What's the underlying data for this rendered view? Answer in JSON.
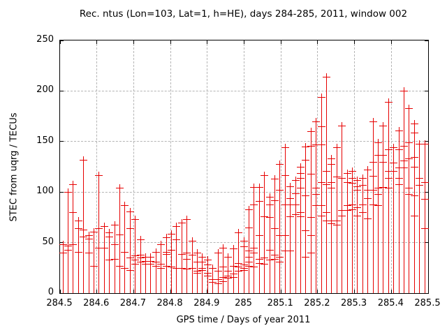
{
  "title": "Rec. ntus (Lon=103, Lat=1, h=HE), days 284-285, 2011, window 002",
  "colors": {
    "series": "#e60000",
    "grid": "#b4b4b4",
    "axis": "#000000",
    "background": "#ffffff"
  },
  "chart_data": {
    "type": "scatter",
    "style": "vertical impulses from zero to max with plus point markers",
    "title": "Rec. ntus (Lon=103, Lat=1, h=HE), days 284-285, 2011, window 002",
    "xlabel": "GPS time / Days of year 2011",
    "ylabel": "STEC from uqrg / TECUs",
    "xlim": [
      284.5,
      285.5
    ],
    "ylim": [
      0,
      250
    ],
    "grid": true,
    "legend": false,
    "x_tick_labels": [
      "284.5",
      "284.6",
      "284.7",
      "284.8",
      "284.9",
      "285",
      "285.1",
      "285.2",
      "285.3",
      "285.4",
      "285.5"
    ],
    "x_ticks": [
      284.5,
      284.6,
      284.7,
      284.8,
      284.9,
      285.0,
      285.1,
      285.2,
      285.3,
      285.4,
      285.5
    ],
    "y_tick_labels": [
      "0",
      "50",
      "100",
      "150",
      "200",
      "250"
    ],
    "y_ticks": [
      0,
      50,
      100,
      150,
      200,
      250
    ],
    "bins": [
      {
        "x": 284.507,
        "values": [
          40,
          48
        ]
      },
      {
        "x": 284.521,
        "values": [
          43,
          47,
          100
        ]
      },
      {
        "x": 284.5351,
        "values": [
          48,
          80,
          108
        ]
      },
      {
        "x": 284.5491,
        "values": [
          41,
          64,
          72
        ]
      },
      {
        "x": 284.5632,
        "values": [
          56,
          63,
          132
        ]
      },
      {
        "x": 284.5772,
        "values": [
          40,
          54,
          57
        ]
      },
      {
        "x": 284.5912,
        "values": [
          27,
          61
        ]
      },
      {
        "x": 284.6053,
        "values": [
          45,
          64,
          117
        ]
      },
      {
        "x": 284.6193,
        "values": [
          45,
          66
        ]
      },
      {
        "x": 284.6334,
        "values": [
          33,
          56,
          60
        ]
      },
      {
        "x": 284.6474,
        "values": [
          34,
          48,
          68
        ]
      },
      {
        "x": 284.6614,
        "values": [
          27,
          58,
          104
        ]
      },
      {
        "x": 284.6755,
        "values": [
          25,
          41,
          87
        ]
      },
      {
        "x": 284.6895,
        "values": [
          23,
          35,
          64,
          81
        ]
      },
      {
        "x": 284.7036,
        "values": [
          29,
          33,
          37,
          73
        ]
      },
      {
        "x": 284.7176,
        "values": [
          31,
          35,
          38,
          53
        ]
      },
      {
        "x": 284.7316,
        "values": [
          29,
          32,
          36
        ]
      },
      {
        "x": 284.7457,
        "values": [
          29,
          32,
          36
        ]
      },
      {
        "x": 284.7597,
        "values": [
          27,
          31,
          41
        ]
      },
      {
        "x": 284.7738,
        "values": [
          25,
          29,
          48
        ]
      },
      {
        "x": 284.7878,
        "values": [
          27,
          39,
          41,
          55
        ]
      },
      {
        "x": 284.8018,
        "values": [
          26,
          43,
          59
        ]
      },
      {
        "x": 284.8159,
        "values": [
          25,
          53,
          66
        ]
      },
      {
        "x": 284.8299,
        "values": [
          25,
          39,
          70
        ]
      },
      {
        "x": 284.844,
        "values": [
          24,
          34,
          40,
          73
        ]
      },
      {
        "x": 284.858,
        "values": [
          25,
          38,
          52
        ]
      },
      {
        "x": 284.872,
        "values": [
          20,
          22,
          31,
          40
        ]
      },
      {
        "x": 284.8861,
        "values": [
          23,
          25,
          31,
          36
        ]
      },
      {
        "x": 284.9001,
        "values": [
          17,
          20,
          28,
          33
        ]
      },
      {
        "x": 284.9142,
        "values": [
          11,
          14,
          25
        ]
      },
      {
        "x": 284.9282,
        "values": [
          10,
          14,
          22,
          40
        ]
      },
      {
        "x": 284.9422,
        "values": [
          12,
          16,
          26,
          45
        ]
      },
      {
        "x": 284.9563,
        "values": [
          15,
          17,
          22,
          36
        ]
      },
      {
        "x": 284.9703,
        "values": [
          16,
          19,
          27,
          44
        ]
      },
      {
        "x": 284.9844,
        "values": [
          22,
          26,
          30,
          60
        ]
      },
      {
        "x": 284.9984,
        "values": [
          23,
          25,
          28,
          46,
          52
        ]
      },
      {
        "x": 285.0124,
        "values": [
          27,
          31,
          36,
          42,
          65,
          83
        ]
      },
      {
        "x": 285.0265,
        "values": [
          26,
          40,
          45,
          88,
          105
        ]
      },
      {
        "x": 285.0405,
        "values": [
          30,
          34,
          57,
          91,
          105
        ]
      },
      {
        "x": 285.0546,
        "values": [
          29,
          35,
          76,
          117
        ]
      },
      {
        "x": 285.0686,
        "values": [
          33,
          43,
          75,
          88,
          95
        ]
      },
      {
        "x": 285.0826,
        "values": [
          34,
          38,
          64,
          92,
          113
        ]
      },
      {
        "x": 285.0967,
        "values": [
          31,
          36,
          57,
          102,
          128
        ]
      },
      {
        "x": 285.1107,
        "values": [
          42,
          57,
          88,
          117,
          144
        ]
      },
      {
        "x": 285.1248,
        "values": [
          42,
          76,
          88,
          94,
          106
        ]
      },
      {
        "x": 285.1388,
        "values": [
          78,
          88,
          99,
          112
        ]
      },
      {
        "x": 285.1528,
        "values": [
          76,
          80,
          104,
          114,
          119,
          125
        ]
      },
      {
        "x": 285.1669,
        "values": [
          36,
          62,
          97,
          132,
          145
        ]
      },
      {
        "x": 285.1809,
        "values": [
          40,
          57,
          75,
          118,
          146,
          160
        ]
      },
      {
        "x": 285.195,
        "values": [
          87,
          98,
          104,
          147,
          170
        ]
      },
      {
        "x": 285.209,
        "values": [
          77,
          87,
          110,
          147,
          165,
          194
        ]
      },
      {
        "x": 285.223,
        "values": [
          72,
          80,
          108,
          121,
          214
        ]
      },
      {
        "x": 285.2371,
        "values": [
          69,
          72,
          104,
          110,
          128,
          133
        ]
      },
      {
        "x": 285.2511,
        "values": [
          68,
          72,
          115,
          144
        ]
      },
      {
        "x": 285.2652,
        "values": [
          77,
          82,
          114,
          166
        ]
      },
      {
        "x": 285.2792,
        "values": [
          82,
          87,
          110,
          119
        ]
      },
      {
        "x": 285.2932,
        "values": [
          83,
          88,
          109,
          114,
          121
        ]
      },
      {
        "x": 285.3073,
        "values": [
          77,
          85,
          102,
          106,
          112
        ]
      },
      {
        "x": 285.3213,
        "values": [
          80,
          88,
          107,
          114
        ]
      },
      {
        "x": 285.3354,
        "values": [
          74,
          94,
          102,
          122
        ]
      },
      {
        "x": 285.3494,
        "values": [
          88,
          102,
          116,
          130,
          170
        ]
      },
      {
        "x": 285.3634,
        "values": [
          87,
          98,
          104,
          137,
          149
        ]
      },
      {
        "x": 285.3775,
        "values": [
          105,
          130,
          137,
          166
        ]
      },
      {
        "x": 285.3915,
        "values": [
          104,
          114,
          121,
          142,
          189
        ]
      },
      {
        "x": 285.4056,
        "values": [
          121,
          129,
          144
        ]
      },
      {
        "x": 285.4196,
        "values": [
          108,
          114,
          124,
          142,
          161
        ]
      },
      {
        "x": 285.4336,
        "values": [
          124,
          131,
          146,
          200
        ]
      },
      {
        "x": 285.4477,
        "values": [
          98,
          104,
          133,
          149,
          183
        ]
      },
      {
        "x": 285.4617,
        "values": [
          77,
          97,
          125,
          135,
          159,
          168
        ]
      },
      {
        "x": 285.4758,
        "values": [
          107,
          114,
          148
        ]
      },
      {
        "x": 285.4898,
        "values": [
          64,
          93,
          110,
          148
        ]
      }
    ]
  }
}
